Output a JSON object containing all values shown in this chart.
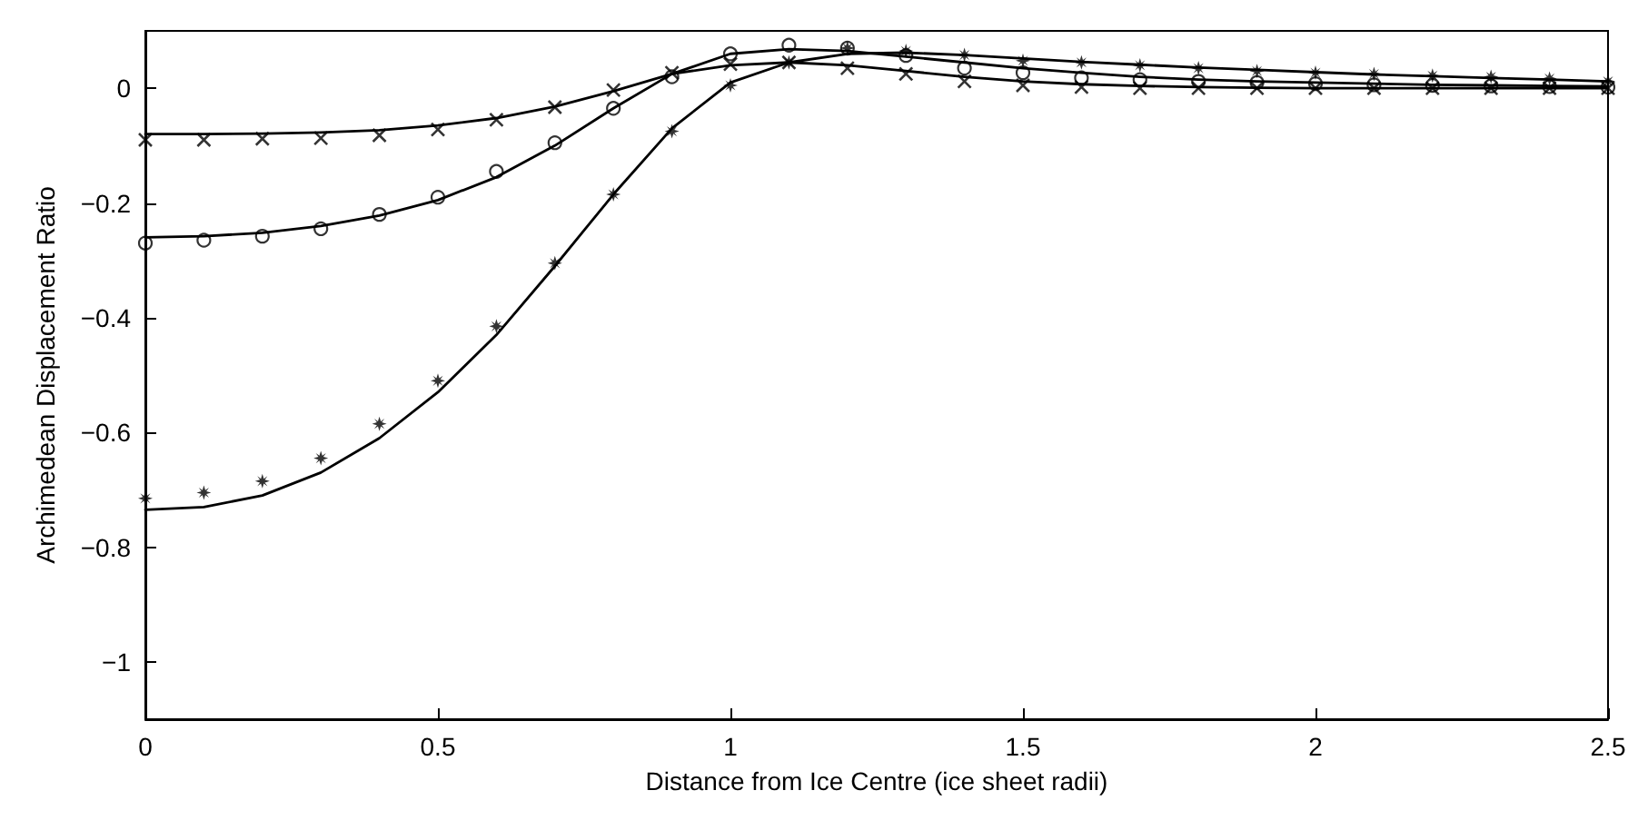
{
  "chart_data": {
    "type": "line",
    "xlabel": "Distance from Ice Centre (ice sheet radii)",
    "ylabel": "Archimedean Displacement Ratio",
    "x": [
      0,
      0.1,
      0.2,
      0.3,
      0.4,
      0.5,
      0.6,
      0.7,
      0.8,
      0.9,
      1.0,
      1.1,
      1.2,
      1.3,
      1.4,
      1.5,
      1.6,
      1.7,
      1.8,
      1.9,
      2.0,
      2.1,
      2.2,
      2.3,
      2.4,
      2.5
    ],
    "xlim": [
      0,
      2.5
    ],
    "xticks": [
      0,
      0.5,
      1,
      1.5,
      2,
      2.5
    ],
    "ylim": [
      -1.1,
      0.1
    ],
    "yticks": [
      -1,
      -0.8,
      -0.6,
      -0.4,
      -0.2,
      0
    ],
    "grid": false,
    "series": [
      {
        "type": "scatter",
        "marker": "cross",
        "color": "#000000",
        "values": [
          -0.09,
          -0.09,
          -0.088,
          -0.087,
          -0.082,
          -0.072,
          -0.055,
          -0.033,
          -0.003,
          0.027,
          0.042,
          0.045,
          0.035,
          0.025,
          0.012,
          0.005,
          0.002,
          0,
          0,
          0,
          0,
          0,
          0,
          0,
          0,
          0
        ]
      },
      {
        "type": "line",
        "marker": "none",
        "color": "#000000",
        "values": [
          -0.08,
          -0.08,
          -0.079,
          -0.077,
          -0.073,
          -0.065,
          -0.052,
          -0.032,
          -0.005,
          0.025,
          0.04,
          0.045,
          0.04,
          0.03,
          0.02,
          0.012,
          0.007,
          0.004,
          0.002,
          0.001,
          0,
          0,
          0,
          0,
          0,
          0
        ]
      },
      {
        "type": "scatter",
        "marker": "circle",
        "color": "#000000",
        "values": [
          -0.27,
          -0.265,
          -0.258,
          -0.245,
          -0.22,
          -0.19,
          -0.145,
          -0.095,
          -0.035,
          0.02,
          0.06,
          0.075,
          0.07,
          0.057,
          0.035,
          0.027,
          0.018,
          0.015,
          0.012,
          0.01,
          0.008,
          0.006,
          0.005,
          0.004,
          0.003,
          0.002
        ]
      },
      {
        "type": "line",
        "marker": "none",
        "color": "#000000",
        "values": [
          -0.26,
          -0.258,
          -0.252,
          -0.24,
          -0.222,
          -0.195,
          -0.155,
          -0.1,
          -0.035,
          0.025,
          0.06,
          0.068,
          0.065,
          0.055,
          0.045,
          0.035,
          0.027,
          0.02,
          0.015,
          0.012,
          0.01,
          0.008,
          0.006,
          0.005,
          0.004,
          0.003
        ]
      },
      {
        "type": "scatter",
        "marker": "star",
        "color": "#000000",
        "values": [
          -0.715,
          -0.705,
          -0.685,
          -0.645,
          -0.585,
          -0.51,
          -0.415,
          -0.305,
          -0.185,
          -0.075,
          0.005,
          0.045,
          0.07,
          0.065,
          0.058,
          0.048,
          0.045,
          0.04,
          0.035,
          0.03,
          0.027,
          0.025,
          0.022,
          0.02,
          0.017,
          0.012
        ]
      },
      {
        "type": "line",
        "marker": "none",
        "color": "#000000",
        "values": [
          -0.735,
          -0.73,
          -0.71,
          -0.67,
          -0.61,
          -0.53,
          -0.43,
          -0.31,
          -0.185,
          -0.07,
          0.01,
          0.045,
          0.06,
          0.062,
          0.058,
          0.052,
          0.046,
          0.041,
          0.036,
          0.032,
          0.028,
          0.024,
          0.021,
          0.018,
          0.015,
          0.012
        ]
      }
    ]
  }
}
